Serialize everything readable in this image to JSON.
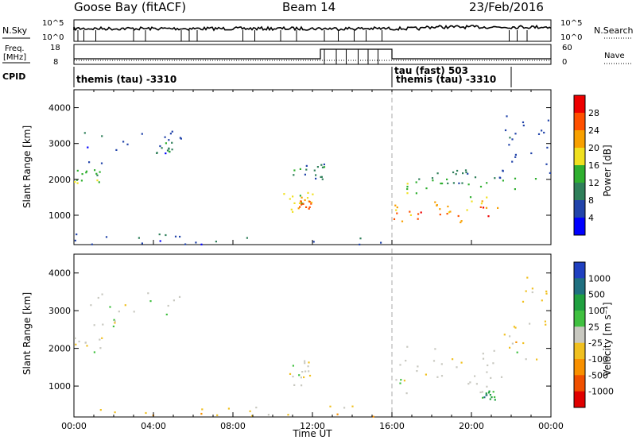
{
  "header": {
    "station": "Goose Bay (fitACF)",
    "beam": "Beam 14",
    "date": "23/Feb/2016"
  },
  "noise_panel": {
    "left_label": "N.Sky",
    "right_label": "N.Search",
    "left_ticks": [
      "10^5",
      "10^0"
    ],
    "right_ticks": [
      "10^5",
      "10^0"
    ]
  },
  "freq_panel": {
    "left_label_line1": "Freq.",
    "left_label_line2": "[MHz]",
    "right_label": "Nave",
    "left_ticks": [
      "18",
      "8"
    ],
    "right_ticks": [
      "60",
      "0"
    ]
  },
  "cpid_panel": {
    "label": "CPID",
    "entries": [
      {
        "text": "themis (tau) -3310",
        "start_hour": 0
      },
      {
        "text": "tau (fast) 503",
        "start_hour": 16
      },
      {
        "text": "themis (tau) -3310",
        "start_hour": 16.3
      }
    ]
  },
  "power_panel": {
    "ylabel": "Slant Range [km]",
    "yticks": [
      "1000",
      "2000",
      "3000",
      "4000"
    ],
    "colorbar_label": "Power [dB]",
    "colorbar_ticks": [
      "4",
      "8",
      "12",
      "16",
      "20",
      "24",
      "28"
    ],
    "colors": [
      "#0000ff",
      "#2244aa",
      "#2f7f5a",
      "#2faf2f",
      "#f0e020",
      "#f8a000",
      "#ff5000",
      "#ee0000"
    ]
  },
  "velocity_panel": {
    "ylabel": "Slant Range [km]",
    "yticks": [
      "1000",
      "2000",
      "3000",
      "4000"
    ],
    "colorbar_label": "Velocity [m s⁻¹]",
    "colorbar_ticks": [
      "1000",
      "500",
      "100",
      "25",
      "-25",
      "-100",
      "-500",
      "-1000"
    ],
    "colors": [
      "#2040c0",
      "#207080",
      "#20a040",
      "#40c040",
      "#c8c8c0",
      "#f0c020",
      "#f89000",
      "#f05000",
      "#e00000"
    ]
  },
  "x_axis": {
    "label": "Time UT",
    "ticks": [
      "00:00",
      "04:00",
      "08:00",
      "12:00",
      "16:00",
      "20:00",
      "00:00"
    ]
  },
  "chart_data": [
    {
      "type": "heatmap",
      "name": "Power",
      "x_range_hours": [
        0,
        24
      ],
      "ylim_km": [
        180,
        4500
      ],
      "regions": [
        {
          "t": [
            0,
            1.4
          ],
          "r": [
            1900,
            2300
          ],
          "level": 3
        },
        {
          "t": [
            0.5,
            5.5
          ],
          "r": [
            2400,
            3500
          ],
          "level": 1
        },
        {
          "t": [
            4.0,
            5.2
          ],
          "r": [
            2600,
            3100
          ],
          "level": 2
        },
        {
          "t": [
            10.5,
            12.0
          ],
          "r": [
            1100,
            1700
          ],
          "level": 4
        },
        {
          "t": [
            11.2,
            11.9
          ],
          "r": [
            1200,
            1500
          ],
          "level": 6
        },
        {
          "t": [
            11.0,
            12.6
          ],
          "r": [
            2000,
            2500
          ],
          "level": 2
        },
        {
          "t": [
            16.0,
            21.5
          ],
          "r": [
            780,
            1450
          ],
          "level": 5
        },
        {
          "t": [
            16.0,
            21.3
          ],
          "r": [
            900,
            1300
          ],
          "level": 6
        },
        {
          "t": [
            16.0,
            23.5
          ],
          "r": [
            1500,
            2100
          ],
          "level": 3
        },
        {
          "t": [
            17.5,
            21.5
          ],
          "r": [
            1900,
            2300
          ],
          "level": 2
        },
        {
          "t": [
            21.5,
            24
          ],
          "r": [
            2000,
            4000
          ],
          "level": 1
        },
        {
          "t": [
            0,
            15.5
          ],
          "r": [
            200,
            500
          ],
          "level": 1
        }
      ]
    },
    {
      "type": "heatmap",
      "name": "Velocity",
      "x_range_hours": [
        0,
        24
      ],
      "ylim_km": [
        180,
        4500
      ],
      "regions": [
        {
          "t": [
            0,
            1.4
          ],
          "r": [
            1900,
            2300
          ],
          "level": 4
        },
        {
          "t": [
            0.5,
            5.5
          ],
          "r": [
            2400,
            3500
          ],
          "level": 4
        },
        {
          "t": [
            10.5,
            12.0
          ],
          "r": [
            900,
            1700
          ],
          "level": 4
        },
        {
          "t": [
            16.0,
            21.5
          ],
          "r": [
            780,
            1450
          ],
          "level": 4
        },
        {
          "t": [
            16.0,
            23.5
          ],
          "r": [
            1500,
            2100
          ],
          "level": 4
        },
        {
          "t": [
            20.5,
            21.2
          ],
          "r": [
            600,
            900
          ],
          "level": 2
        },
        {
          "t": [
            21.5,
            24
          ],
          "r": [
            2000,
            4000
          ],
          "level": 5
        },
        {
          "t": [
            0,
            15.5
          ],
          "r": [
            200,
            500
          ],
          "level": 5
        }
      ]
    }
  ]
}
